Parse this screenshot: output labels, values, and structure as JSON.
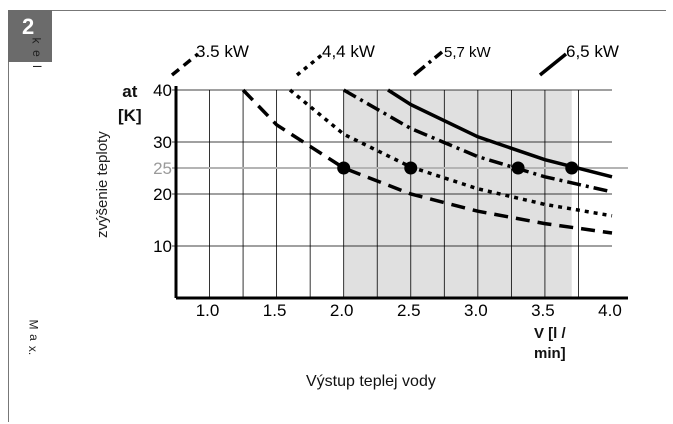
{
  "badge": {
    "number": "2"
  },
  "side_top_letters": [
    "k",
    "e",
    "l"
  ],
  "side_bottom_letters": [
    "M",
    "a",
    "x."
  ],
  "axis": {
    "y_label_lines": [
      "at",
      "[K]"
    ],
    "y_side_label": "zvýšenie teploty",
    "x_label_lines": [
      "V [l /",
      "min]"
    ],
    "bottom_title": "Výstup teplej vody"
  },
  "chart_data": {
    "type": "line",
    "title": "",
    "xlabel": "V [l / min]",
    "ylabel": "at [K]",
    "x_ticks": [
      "1.0",
      "1.5",
      "2.0",
      "2.5",
      "3.0",
      "3.5",
      "4.0"
    ],
    "y_ticks": [
      "10",
      "20",
      "25",
      "30",
      "40"
    ],
    "xlim": [
      0.75,
      4.0
    ],
    "ylim": [
      0,
      40
    ],
    "reference_line": {
      "y": 25,
      "label": "25"
    },
    "shaded_region": {
      "x_from": 2.0,
      "x_to": 3.7
    },
    "series": [
      {
        "name": "3.5 kW",
        "style": "dashed",
        "x": [
          1.25,
          1.5,
          2.0,
          2.5,
          3.0,
          3.5,
          4.0
        ],
        "y": [
          40,
          33.3,
          25,
          20,
          16.7,
          14.3,
          12.5
        ],
        "point": [
          2.0,
          25
        ]
      },
      {
        "name": "4,4 kW",
        "style": "dotted",
        "x": [
          1.6,
          2.0,
          2.5,
          3.0,
          3.5,
          4.0
        ],
        "y": [
          40,
          31.5,
          25.2,
          21,
          18,
          15.8
        ],
        "point": [
          2.5,
          25
        ]
      },
      {
        "name": "5,7 kW",
        "style": "dashdot",
        "x": [
          2.0,
          2.5,
          3.0,
          3.5,
          4.0
        ],
        "y": [
          40,
          32.6,
          27.2,
          23.3,
          20.4
        ],
        "point": [
          3.3,
          25
        ]
      },
      {
        "name": "6,5 kW",
        "style": "solid",
        "x": [
          2.33,
          2.5,
          3.0,
          3.5,
          4.0
        ],
        "y": [
          40,
          37.2,
          31,
          26.6,
          23.3
        ],
        "point": [
          3.7,
          25
        ]
      }
    ]
  },
  "colors": {
    "shade": "#e0e0e0",
    "reference": "#b4b4b4",
    "ink": "#000000",
    "grid": "#000000",
    "badge": "#6b6b6b",
    "ref_label": "#9a9a9a"
  }
}
